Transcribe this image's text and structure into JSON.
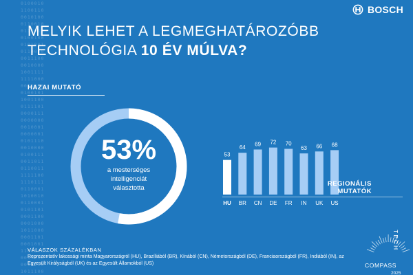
{
  "brand": {
    "name": "BOSCH",
    "logo_icon": "bosch-armature-icon"
  },
  "headline": {
    "line1": "MELYIK LEHET A LEGMEGHATÁROZÓBB",
    "line2_normal": "TECHNOLÓGIA ",
    "line2_bold": "10 ÉV MÚLVA?"
  },
  "home_indicator": {
    "label": "HAZAI MUTATÓ",
    "percent": 53,
    "percent_text": "53%",
    "caption": "a mesterséges\nintelligenciát\nválasztotta"
  },
  "regional": {
    "label_line1": "REGIONÁLIS",
    "label_line2": "MUTATÓK"
  },
  "footer": {
    "title": "VÁLASZOK SZÁZALÉKBAN",
    "description": "Reprezentatív lakossági minta Magyarországról (HU), Brazíliából (BR), Kínából (CN), Németországból (DE), Franciaországból (FR), Indiából (IN), az Egyesült Királyságból (UK) és az Egyesült Államokból (US)"
  },
  "logo": {
    "line1": "TECH",
    "line2": "COMPASS",
    "line3": "2025"
  },
  "colors": {
    "background": "#1f78bf",
    "bar_highlight": "#ffffff",
    "bar": "#a6cdf5",
    "donut_track": "#a6cdf5",
    "donut_fill": "#ffffff"
  },
  "chart_data": [
    {
      "type": "pie",
      "title": "HAZAI MUTATÓ",
      "values": [
        53,
        47
      ],
      "labels": [
        "a mesterséges intelligenciát választotta",
        ""
      ]
    },
    {
      "type": "bar",
      "title": "REGIONÁLIS MUTATÓK",
      "categories": [
        "HU",
        "BR",
        "CN",
        "DE",
        "FR",
        "IN",
        "UK",
        "US"
      ],
      "values": [
        53,
        64,
        69,
        72,
        70,
        63,
        66,
        68
      ],
      "highlight": "HU",
      "ylim": [
        0,
        80
      ],
      "grid": false
    }
  ]
}
